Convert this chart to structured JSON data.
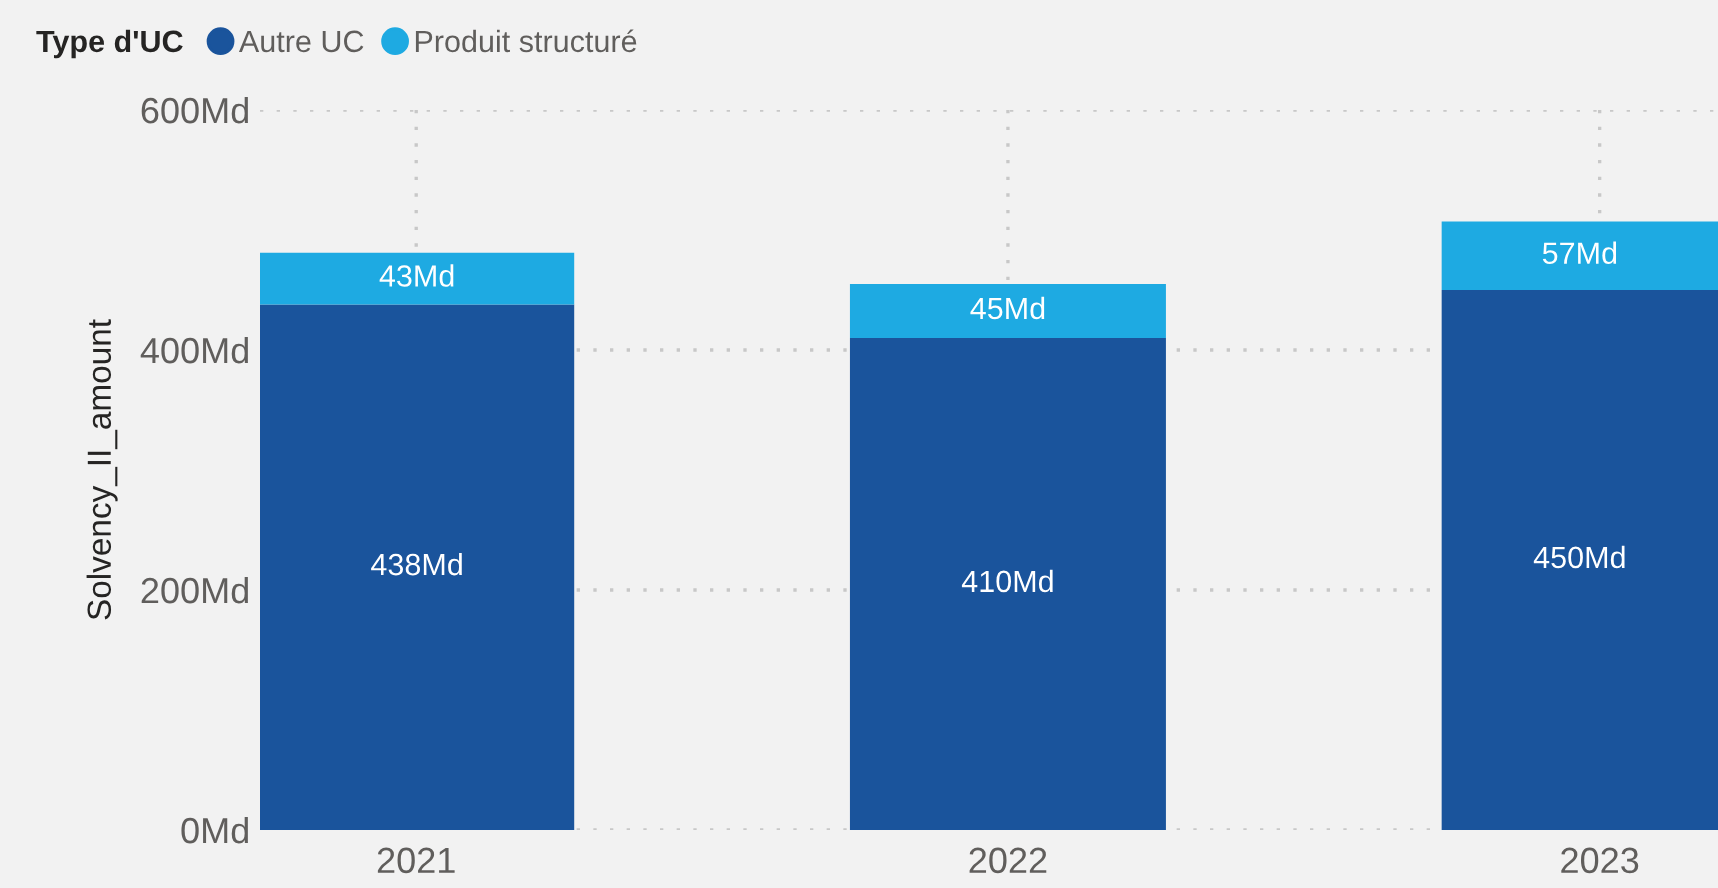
{
  "chart_data": {
    "type": "bar",
    "stacked": true,
    "legend_title": "Type d'UC",
    "ylabel": "Solvency_II_amount",
    "categories": [
      "2021",
      "2022",
      "2023"
    ],
    "series": [
      {
        "name": "Autre UC",
        "color": "#1a549c",
        "values": [
          438,
          410,
          450
        ],
        "value_labels": [
          "438Md",
          "410Md",
          "450Md"
        ]
      },
      {
        "name": "Produit structuré",
        "color": "#1eaae2",
        "values": [
          43,
          45,
          57
        ],
        "value_labels": [
          "43Md",
          "45Md",
          "57Md"
        ]
      }
    ],
    "ylim": [
      0,
      600
    ],
    "yticks": [
      {
        "value": 0,
        "label": "0Md"
      },
      {
        "value": 200,
        "label": "200Md"
      },
      {
        "value": 400,
        "label": "400Md"
      },
      {
        "value": 600,
        "label": "600Md"
      }
    ],
    "grid": true,
    "legend": "top left"
  }
}
